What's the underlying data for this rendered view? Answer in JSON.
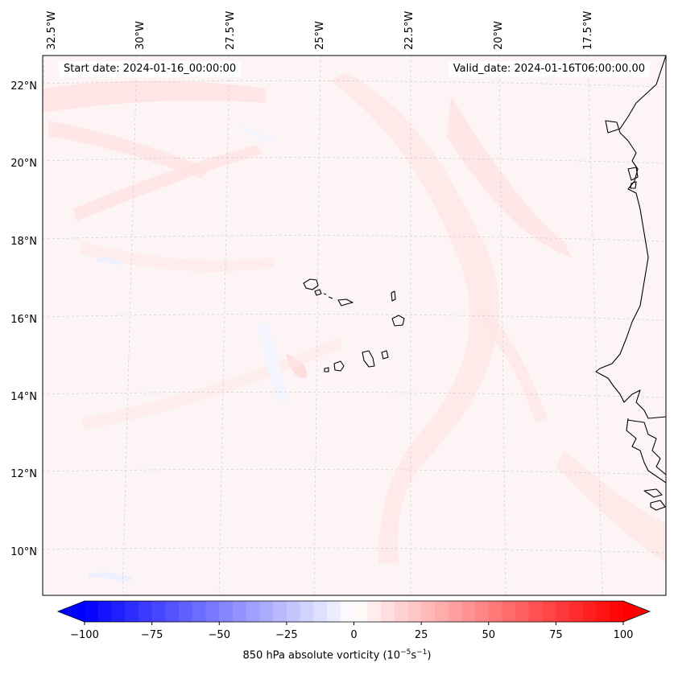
{
  "header": {
    "start_date": "Start date: 2024-01-16_00:00:00",
    "valid_date": "Valid_date: 2024-01-16T06:00:00.00"
  },
  "lon_labels": [
    "32.5°W",
    "30°W",
    "27.5°W",
    "25°W",
    "22.5°W",
    "20°W",
    "17.5°W"
  ],
  "lat_labels": [
    "22°N",
    "20°N",
    "18°N",
    "16°N",
    "14°N",
    "12°N",
    "10°N"
  ],
  "colorbar": {
    "ticks": [
      "−100",
      "−75",
      "−50",
      "−25",
      "0",
      "25",
      "50",
      "75",
      "100"
    ],
    "label_prefix": "850 hPa absolute vorticity (10",
    "label_exp1": "−5",
    "label_mid": "s",
    "label_exp2": "−1",
    "label_suffix": ")",
    "min": -100,
    "max": 100,
    "colors": {
      "negative": "#0000ff",
      "zero": "#ffffff",
      "positive": "#ff0000"
    }
  },
  "map": {
    "background_color": "#fdf5f5",
    "coastline_color": "#000000",
    "gridline_color": "#c8c8c8"
  }
}
